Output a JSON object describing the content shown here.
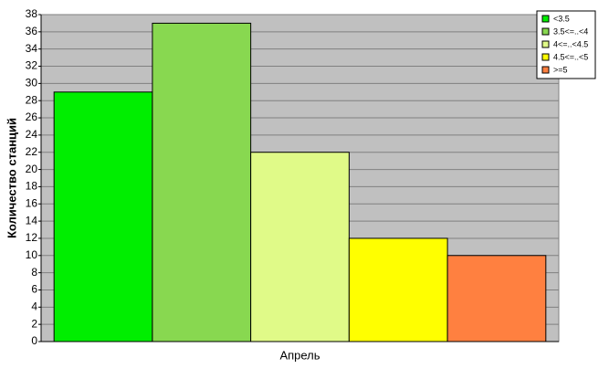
{
  "chart_data": {
    "type": "bar",
    "y_label": "Количество станций",
    "categories": [
      "Апрель"
    ],
    "series": [
      {
        "name": "<3.5",
        "color": "#00ee00",
        "values": [
          29
        ]
      },
      {
        "name": "3.5<=..<4",
        "color": "#88d850",
        "values": [
          37
        ]
      },
      {
        "name": "4<=..<4.5",
        "color": "#e0fa88",
        "values": [
          22
        ]
      },
      {
        "name": "4.5<=..<5",
        "color": "#ffff00",
        "values": [
          12
        ]
      },
      {
        "name": ">=5",
        "color": "#ff8040",
        "values": [
          10
        ]
      }
    ],
    "ylim": [
      0,
      38
    ],
    "yticks": [
      0,
      2,
      4,
      6,
      8,
      10,
      12,
      14,
      16,
      18,
      20,
      22,
      24,
      26,
      28,
      30,
      32,
      34,
      36,
      38
    ],
    "grid": true,
    "legend": "top-right"
  }
}
